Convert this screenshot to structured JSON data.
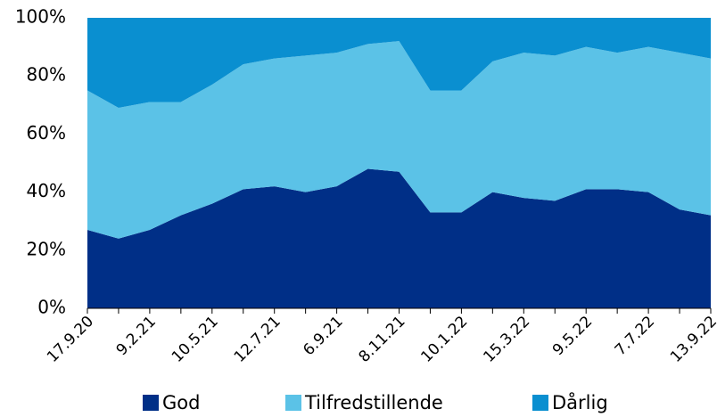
{
  "chart_data": {
    "type": "stacked_area",
    "categories": [
      "17.9.20",
      null,
      "9.2.21",
      null,
      "10.5.21",
      null,
      "12.7.21",
      null,
      "6.9.21",
      null,
      "8.11.21",
      null,
      "10.1.22",
      null,
      "15.3.22",
      null,
      "9.5.22",
      null,
      "7.7.22",
      null,
      "13.9.22"
    ],
    "series": [
      {
        "name": "God",
        "color": "#002f87",
        "values": [
          27,
          24,
          27,
          32,
          36,
          41,
          42,
          40,
          42,
          48,
          47,
          33,
          33,
          40,
          38,
          37,
          41,
          41,
          40,
          34,
          32
        ]
      },
      {
        "name": "Tilfredstillende",
        "color": "#5bc2e7",
        "values": [
          48,
          45,
          44,
          39,
          41,
          43,
          44,
          47,
          46,
          43,
          45,
          42,
          42,
          45,
          50,
          50,
          49,
          47,
          50,
          54,
          54
        ]
      },
      {
        "name": "Dårlig",
        "color": "#0a8fd0",
        "values": [
          25,
          31,
          29,
          29,
          23,
          16,
          14,
          13,
          12,
          9,
          8,
          25,
          25,
          15,
          12,
          13,
          10,
          12,
          10,
          12,
          14
        ]
      }
    ],
    "ylim": [
      0,
      100
    ],
    "yticks": [
      {
        "value": 0,
        "label": "0%"
      },
      {
        "value": 20,
        "label": "20%"
      },
      {
        "value": 40,
        "label": "40%"
      },
      {
        "value": 60,
        "label": "60%"
      },
      {
        "value": 80,
        "label": "80%"
      },
      {
        "value": 100,
        "label": "100%"
      }
    ],
    "legend": "bottom"
  }
}
